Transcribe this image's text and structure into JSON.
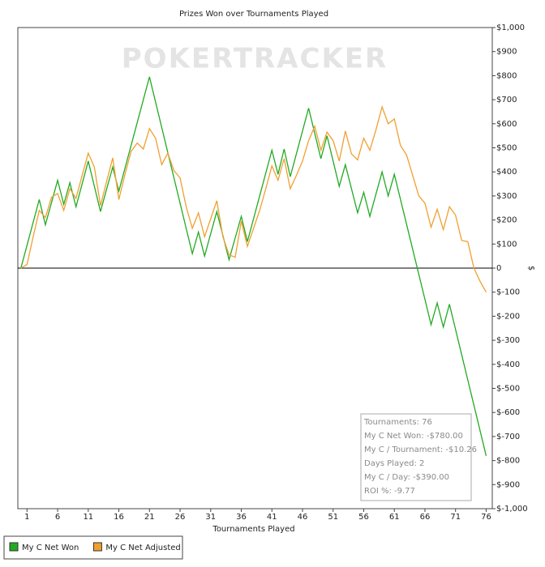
{
  "chart_data": {
    "type": "line",
    "title": "Prizes Won over Tournaments Played",
    "watermark": "POKERTRACKER",
    "xlabel": "Tournaments Played",
    "ylabel": "$",
    "x": [
      0,
      1,
      2,
      3,
      4,
      5,
      6,
      7,
      8,
      9,
      10,
      11,
      12,
      13,
      14,
      15,
      16,
      17,
      18,
      19,
      20,
      21,
      22,
      23,
      24,
      25,
      26,
      27,
      28,
      29,
      30,
      31,
      32,
      33,
      34,
      35,
      36,
      37,
      38,
      39,
      40,
      41,
      42,
      43,
      44,
      45,
      46,
      47,
      48,
      49,
      50,
      51,
      52,
      53,
      54,
      55,
      56,
      57,
      58,
      59,
      60,
      61,
      62,
      63,
      64,
      65,
      66,
      67,
      68,
      69,
      70,
      71,
      72,
      73,
      74,
      75,
      76
    ],
    "series": [
      {
        "name": "My C Net Won",
        "color": "#22aa22",
        "values": [
          0,
          95,
          190,
          285,
          180,
          272,
          365,
          265,
          355,
          255,
          350,
          445,
          340,
          235,
          328,
          420,
          320,
          415,
          510,
          605,
          700,
          795,
          690,
          585,
          480,
          375,
          270,
          165,
          60,
          150,
          50,
          143,
          235,
          135,
          35,
          125,
          215,
          110,
          205,
          300,
          395,
          490,
          390,
          495,
          380,
          475,
          570,
          665,
          560,
          455,
          550,
          445,
          340,
          430,
          330,
          230,
          315,
          215,
          308,
          400,
          300,
          390,
          286,
          182,
          78,
          -26,
          -130,
          -235,
          -145,
          -245,
          -150,
          -255,
          -360,
          -465,
          -570,
          -675,
          -780
        ]
      },
      {
        "name": "My C Net Adjusted",
        "color": "#f0a030",
        "values": [
          0,
          15,
          130,
          240,
          210,
          295,
          310,
          240,
          330,
          290,
          385,
          478,
          420,
          260,
          360,
          458,
          285,
          390,
          485,
          520,
          495,
          580,
          540,
          430,
          478,
          405,
          375,
          255,
          165,
          230,
          130,
          205,
          280,
          130,
          55,
          45,
          195,
          90,
          165,
          240,
          330,
          425,
          365,
          455,
          330,
          385,
          445,
          530,
          590,
          490,
          565,
          530,
          445,
          570,
          475,
          450,
          540,
          490,
          575,
          670,
          600,
          620,
          510,
          470,
          385,
          300,
          270,
          170,
          245,
          160,
          255,
          220,
          115,
          110,
          0,
          -55,
          -100
        ]
      }
    ],
    "xlim": [
      -0.5,
      77
    ],
    "xticks": [
      1,
      6,
      11,
      16,
      21,
      26,
      31,
      36,
      41,
      46,
      51,
      56,
      61,
      66,
      71,
      76
    ],
    "ylim": [
      -1000,
      1000
    ],
    "yticks": [
      {
        "value": 1000,
        "label": "$1,000"
      },
      {
        "value": 900,
        "label": "$900"
      },
      {
        "value": 800,
        "label": "$800"
      },
      {
        "value": 700,
        "label": "$700"
      },
      {
        "value": 600,
        "label": "$600"
      },
      {
        "value": 500,
        "label": "$500"
      },
      {
        "value": 400,
        "label": "$400"
      },
      {
        "value": 300,
        "label": "$300"
      },
      {
        "value": 200,
        "label": "$200"
      },
      {
        "value": 100,
        "label": "$100"
      },
      0,
      {
        "value": -100,
        "label": "$-100"
      },
      {
        "value": -200,
        "label": "$-200"
      },
      {
        "value": -300,
        "label": "$-300"
      },
      {
        "value": -400,
        "label": "$-400"
      },
      {
        "value": -500,
        "label": "$-500"
      },
      {
        "value": -600,
        "label": "$-600"
      },
      {
        "value": -700,
        "label": "$-700"
      },
      {
        "value": -800,
        "label": "$-800"
      },
      {
        "value": -900,
        "label": "$-900"
      },
      {
        "value": -1000,
        "label": "$-1,000"
      }
    ],
    "grid": false,
    "info": [
      "Tournaments: 76",
      "My C Net Won: -$780.00",
      "My C / Tournament: -$10.26",
      "Days Played: 2",
      "My C / Day: -$390.00",
      "ROI %: -9.77"
    ]
  }
}
